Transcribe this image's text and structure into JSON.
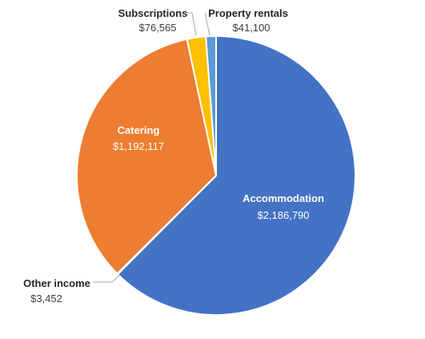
{
  "chart_data": {
    "type": "pie",
    "title": "",
    "slices": [
      {
        "label": "Accommodation",
        "value_label": "$2,186,790",
        "value": 2186790,
        "color": "#4472C4"
      },
      {
        "label": "Other income",
        "value_label": "$3,452",
        "value": 3452,
        "color": "#A5A5A5"
      },
      {
        "label": "Catering",
        "value_label": "$1,192,117",
        "value": 1192117,
        "color": "#ED7D31"
      },
      {
        "label": "Subscriptions",
        "value_label": "$76,565",
        "value": 76565,
        "color": "#FFC000"
      },
      {
        "label": "Property rentals",
        "value_label": "$41,100",
        "value": 41100,
        "color": "#5B9BD5"
      }
    ]
  }
}
